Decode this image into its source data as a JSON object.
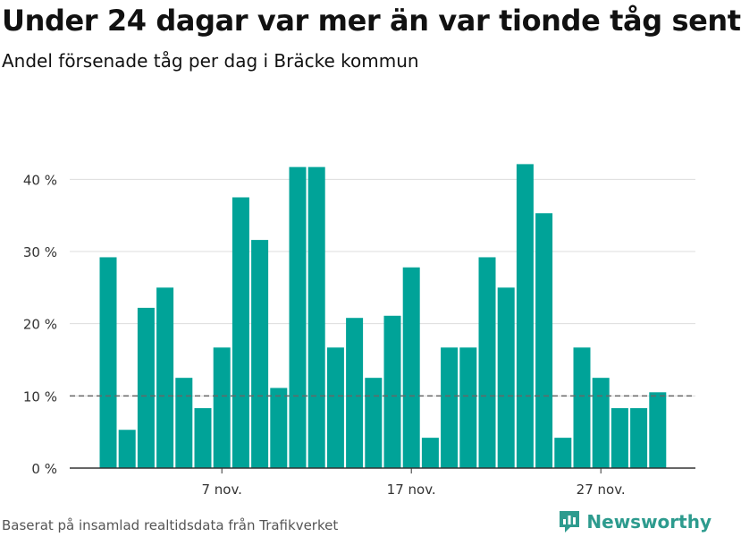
{
  "header": {
    "title": "Under 24 dagar var mer än var tionde tåg sent",
    "subtitle": "Andel försenade tåg per dag i Bräcke kommun"
  },
  "footer": {
    "source": "Baserat på insamlad realtidsdata från Trafikverket",
    "brand": "Newsworthy",
    "brand_icon": "newsworthy-logo-icon"
  },
  "colors": {
    "bar": "#00a398",
    "grid": "#dddddd",
    "axis": "#333333",
    "reference_line": "#666666",
    "brand": "#2d9b8e"
  },
  "chart_data": {
    "type": "bar",
    "x": [
      "2020-11-01",
      "2020-11-02",
      "2020-11-03",
      "2020-11-04",
      "2020-11-05",
      "2020-11-06",
      "2020-11-07",
      "2020-11-08",
      "2020-11-09",
      "2020-11-10",
      "2020-11-11",
      "2020-11-12",
      "2020-11-13",
      "2020-11-14",
      "2020-11-15",
      "2020-11-16",
      "2020-11-17",
      "2020-11-18",
      "2020-11-19",
      "2020-11-20",
      "2020-11-21",
      "2020-11-22",
      "2020-11-23",
      "2020-11-24",
      "2020-11-25",
      "2020-11-26",
      "2020-11-27",
      "2020-11-28",
      "2020-11-29",
      "2020-11-30"
    ],
    "values": [
      29.2,
      5.3,
      22.2,
      25.0,
      12.5,
      8.3,
      16.7,
      37.5,
      31.6,
      11.1,
      41.7,
      41.7,
      16.7,
      20.8,
      12.5,
      21.1,
      27.8,
      4.2,
      16.7,
      16.7,
      29.2,
      25.0,
      42.1,
      35.3,
      4.2,
      16.7,
      12.5,
      8.3,
      8.3,
      10.5
    ],
    "ylim": [
      0,
      45
    ],
    "yticks": [
      0,
      10,
      20,
      30,
      40
    ],
    "ytick_labels": [
      "0 %",
      "10 %",
      "20 %",
      "30 %",
      "40 %"
    ],
    "xticks": [
      "2020-11-07",
      "2020-11-17",
      "2020-11-27"
    ],
    "xtick_labels": [
      "7 nov.",
      "17 nov.",
      "27 nov."
    ],
    "reference_line": 10,
    "grid": true,
    "legend": "none"
  }
}
